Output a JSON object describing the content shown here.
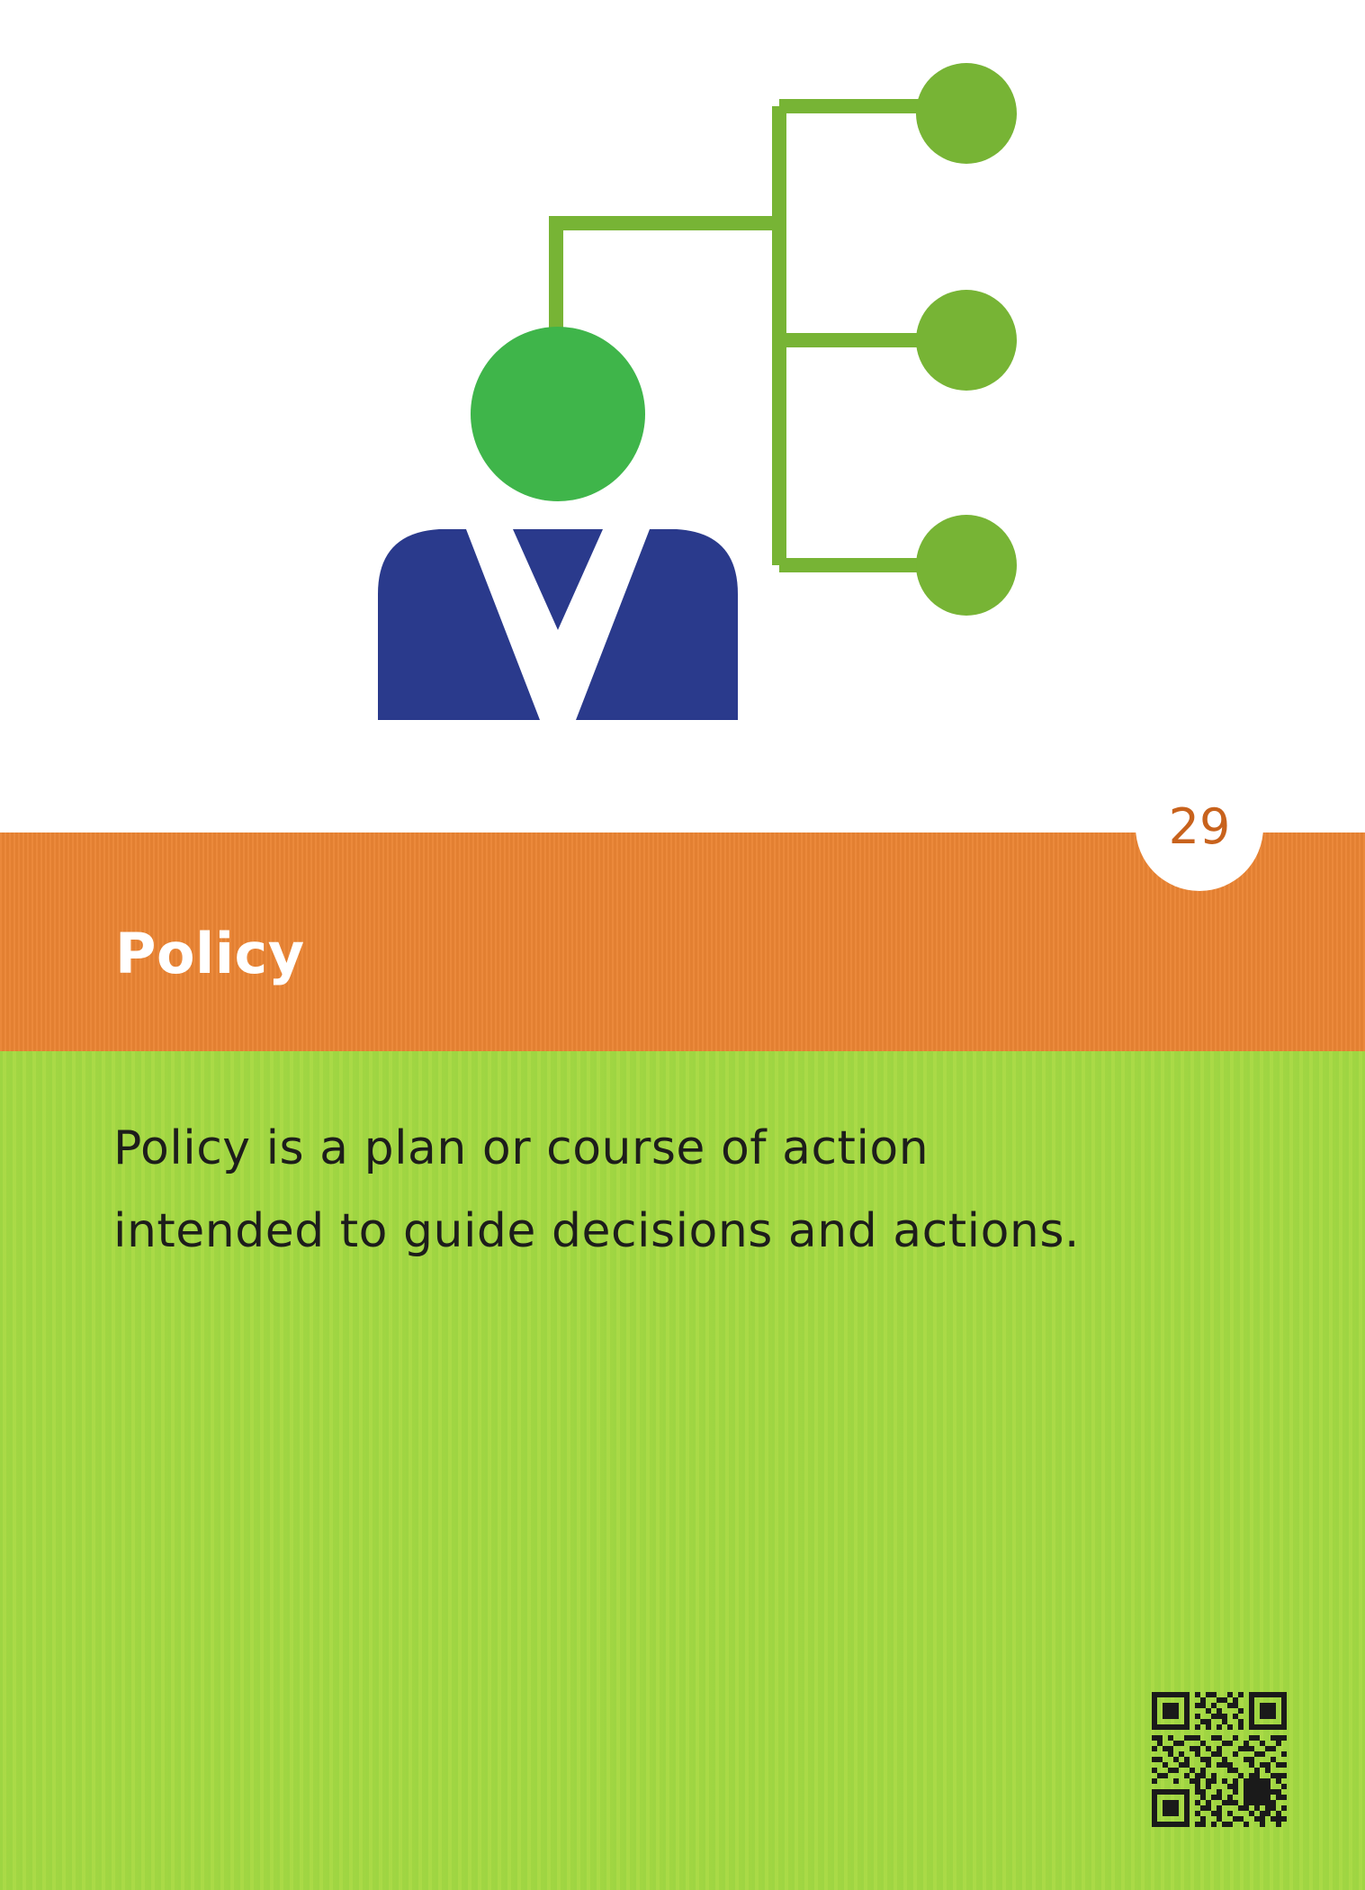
{
  "card": {
    "number": "29",
    "title": "Policy",
    "description": "Policy is a plan or course of action intended to guide decisions and actions."
  },
  "icon": {
    "name": "person-hierarchy-icon",
    "colors": {
      "head": "#3fb54a",
      "body": "#2a3a8c",
      "collar": "#ffffff",
      "branches": "#77b435"
    }
  },
  "qr": {
    "name": "qr-code"
  },
  "colors": {
    "header_band": "#ea8433",
    "body_background": "#a6d844",
    "number_text": "#c8621c",
    "title_text": "#ffffff",
    "description_text": "#1d1d1b"
  }
}
